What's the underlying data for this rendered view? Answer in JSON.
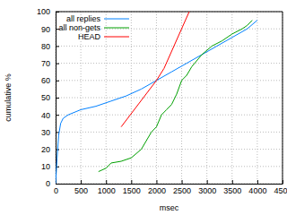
{
  "chart_data": {
    "type": "line",
    "xlabel": "msec",
    "ylabel": "cumulative %",
    "xlim": [
      0,
      4500
    ],
    "ylim": [
      0,
      100
    ],
    "xticks": [
      0,
      500,
      1000,
      1500,
      2000,
      2500,
      3000,
      3500,
      4000,
      4500
    ],
    "yticks": [
      0,
      10,
      20,
      30,
      40,
      50,
      60,
      70,
      80,
      90,
      100
    ],
    "grid": true,
    "legend": "upper left",
    "series": [
      {
        "name": "all replies",
        "color": "#0080ff",
        "x": [
          0,
          30,
          60,
          100,
          150,
          250,
          500,
          800,
          1100,
          1400,
          1700,
          2000,
          2300,
          2600,
          2900,
          3200,
          3500,
          3800,
          4000
        ],
        "values": [
          0,
          15,
          28,
          35,
          38,
          40,
          43,
          45,
          48,
          51,
          55,
          60,
          65,
          70,
          75,
          80,
          85,
          90,
          95
        ]
      },
      {
        "name": "all non-gets",
        "color": "#00a000",
        "x": [
          850,
          1000,
          1100,
          1300,
          1500,
          1700,
          1800,
          1900,
          2000,
          2100,
          2200,
          2300,
          2400,
          2500,
          2600,
          2700,
          2900,
          3100,
          3300,
          3500,
          3700,
          3800,
          3900
        ],
        "values": [
          7,
          9,
          12,
          13,
          15,
          20,
          25,
          30,
          33,
          40,
          43,
          46,
          52,
          60,
          63,
          68,
          75,
          80,
          83,
          87,
          90,
          92,
          95
        ]
      },
      {
        "name": "HEAD",
        "color": "#ff0000",
        "x": [
          1300,
          2000,
          2150,
          2650
        ],
        "values": [
          33,
          60,
          67,
          100
        ]
      }
    ]
  }
}
